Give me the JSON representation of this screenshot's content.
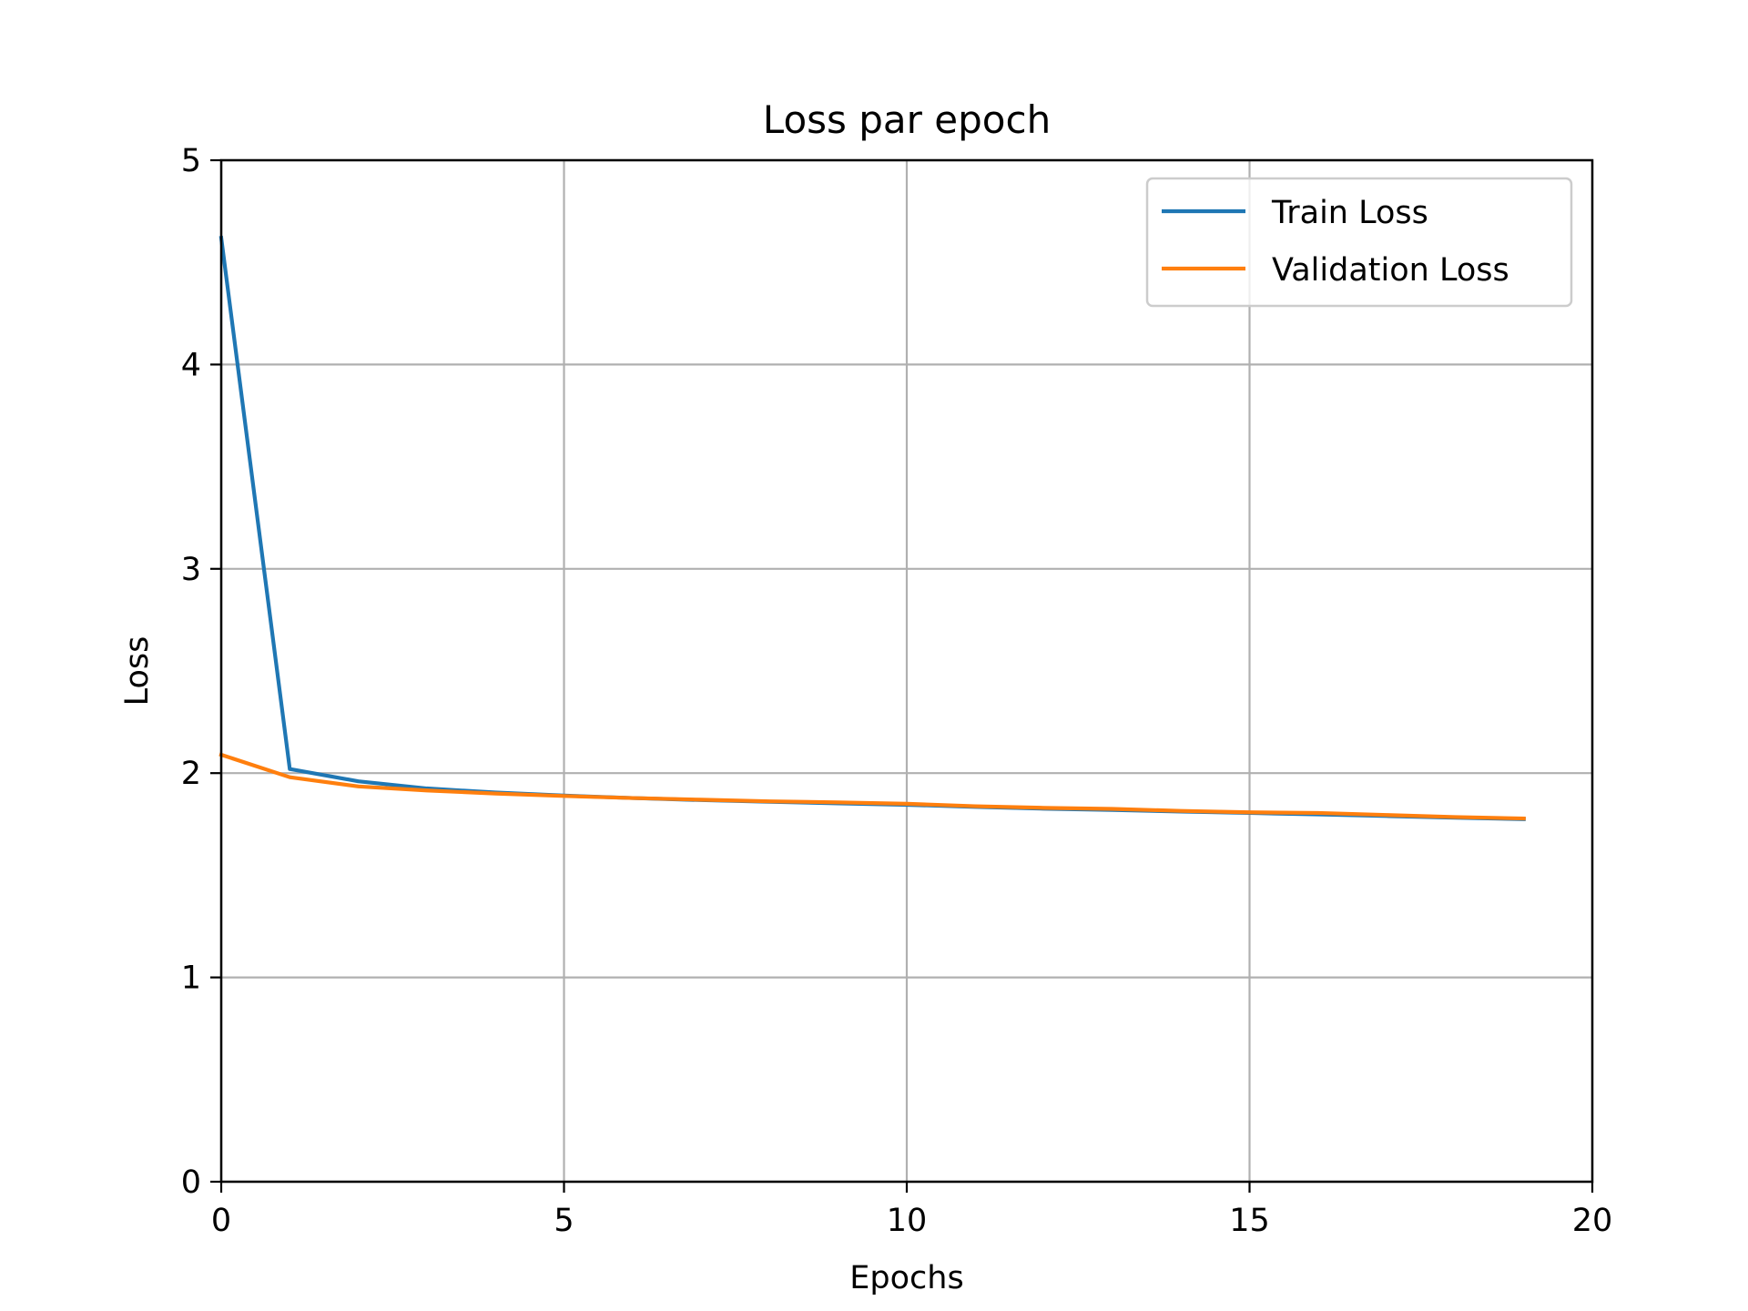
{
  "chart_data": {
    "type": "line",
    "title": "Loss par epoch",
    "xlabel": "Epochs",
    "ylabel": "Loss",
    "xlim": [
      0,
      20
    ],
    "ylim": [
      0,
      5
    ],
    "xticks": [
      "0",
      "5",
      "10",
      "15",
      "20"
    ],
    "yticks": [
      "0",
      "1",
      "2",
      "3",
      "4",
      "5"
    ],
    "grid": true,
    "legend_position": "top-right",
    "x": [
      0,
      1,
      2,
      3,
      4,
      5,
      6,
      7,
      8,
      9,
      10,
      11,
      12,
      13,
      14,
      15,
      16,
      17,
      18,
      19
    ],
    "series": [
      {
        "name": "Train Loss",
        "color": "#1f77b4",
        "values": [
          4.62,
          2.02,
          1.96,
          1.925,
          1.905,
          1.89,
          1.878,
          1.868,
          1.86,
          1.852,
          1.845,
          1.835,
          1.826,
          1.82,
          1.812,
          1.805,
          1.798,
          1.79,
          1.782,
          1.775
        ]
      },
      {
        "name": "Validation Loss",
        "color": "#ff7f0e",
        "values": [
          2.09,
          1.98,
          1.935,
          1.915,
          1.9,
          1.888,
          1.878,
          1.87,
          1.862,
          1.857,
          1.85,
          1.838,
          1.83,
          1.825,
          1.815,
          1.808,
          1.805,
          1.795,
          1.785,
          1.778
        ]
      }
    ]
  }
}
